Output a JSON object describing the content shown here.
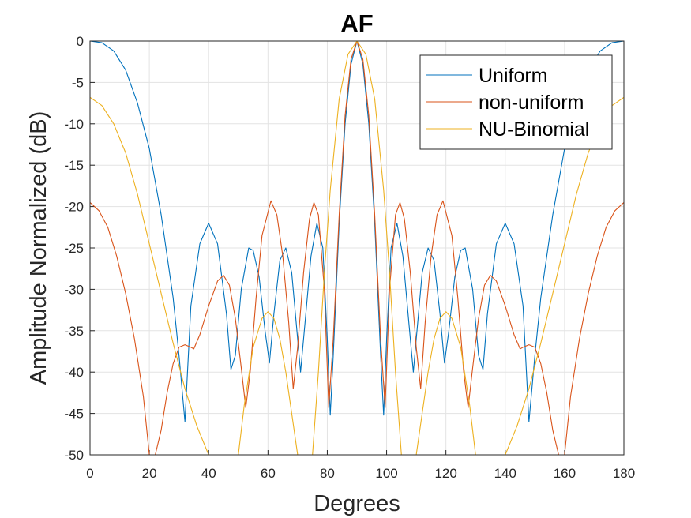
{
  "chart_data": {
    "type": "line",
    "title": "AF",
    "xlabel": "Degrees",
    "ylabel": "Amplitude Normalized (dB)",
    "xlim": [
      0,
      180
    ],
    "ylim": [
      -50,
      0
    ],
    "xticks": [
      "0",
      "20",
      "40",
      "60",
      "80",
      "100",
      "120",
      "140",
      "160",
      "180"
    ],
    "yticks": [
      "0",
      "-5",
      "-10",
      "-15",
      "-20",
      "-25",
      "-30",
      "-35",
      "-40",
      "-45",
      "-50"
    ],
    "grid": true,
    "legend_position": "top-right",
    "series": [
      {
        "name": "Uniform",
        "color": "#0072BD",
        "points": [
          [
            0,
            0
          ],
          [
            4,
            -0.2
          ],
          [
            8,
            -1.2
          ],
          [
            12,
            -3.5
          ],
          [
            16,
            -7.5
          ],
          [
            20,
            -13
          ],
          [
            24,
            -21
          ],
          [
            28,
            -31
          ],
          [
            30,
            -38
          ],
          [
            32,
            -46
          ],
          [
            34,
            -32
          ],
          [
            37,
            -24.5
          ],
          [
            40,
            -22
          ],
          [
            43,
            -24.5
          ],
          [
            46,
            -33
          ],
          [
            47.5,
            -39.7
          ],
          [
            49,
            -38
          ],
          [
            51,
            -30
          ],
          [
            53.5,
            -25
          ],
          [
            55,
            -25.3
          ],
          [
            57,
            -28.5
          ],
          [
            59,
            -35
          ],
          [
            60.5,
            -38.9
          ],
          [
            62,
            -33
          ],
          [
            64,
            -26.5
          ],
          [
            66,
            -25
          ],
          [
            68,
            -28
          ],
          [
            70,
            -36
          ],
          [
            71,
            -40
          ],
          [
            72.5,
            -34
          ],
          [
            74.5,
            -26
          ],
          [
            76.5,
            -22
          ],
          [
            78.5,
            -25
          ],
          [
            80,
            -36
          ],
          [
            81,
            -45.2
          ],
          [
            82,
            -38
          ],
          [
            84,
            -22
          ],
          [
            86,
            -10
          ],
          [
            88,
            -2.8
          ],
          [
            90,
            0
          ],
          [
            92,
            -2.8
          ],
          [
            94,
            -10
          ],
          [
            96,
            -22
          ],
          [
            98,
            -38
          ],
          [
            99,
            -45.2
          ],
          [
            100,
            -36
          ],
          [
            101.5,
            -25
          ],
          [
            103.5,
            -22
          ],
          [
            105.5,
            -26
          ],
          [
            107.5,
            -34
          ],
          [
            109,
            -40
          ],
          [
            110,
            -36
          ],
          [
            112,
            -28
          ],
          [
            114,
            -25
          ],
          [
            116,
            -26.5
          ],
          [
            118,
            -33
          ],
          [
            119.5,
            -38.9
          ],
          [
            121,
            -35
          ],
          [
            123,
            -28.5
          ],
          [
            125,
            -25.3
          ],
          [
            126.5,
            -25
          ],
          [
            129,
            -30
          ],
          [
            131,
            -38
          ],
          [
            132.5,
            -39.7
          ],
          [
            134,
            -33
          ],
          [
            137,
            -24.5
          ],
          [
            140,
            -22
          ],
          [
            143,
            -24.5
          ],
          [
            146,
            -32
          ],
          [
            148,
            -46
          ],
          [
            150,
            -38
          ],
          [
            152,
            -31
          ],
          [
            156,
            -21
          ],
          [
            160,
            -13
          ],
          [
            164,
            -7.5
          ],
          [
            168,
            -3.5
          ],
          [
            172,
            -1.2
          ],
          [
            176,
            -0.2
          ],
          [
            180,
            0
          ]
        ]
      },
      {
        "name": "non-uniform",
        "color": "#D95319",
        "points": [
          [
            0,
            -19.5
          ],
          [
            3,
            -20.5
          ],
          [
            6,
            -22.5
          ],
          [
            9,
            -26
          ],
          [
            12,
            -30.5
          ],
          [
            15,
            -36
          ],
          [
            18,
            -43
          ],
          [
            20,
            -50
          ],
          [
            22,
            -50
          ],
          [
            24,
            -47
          ],
          [
            26,
            -42.5
          ],
          [
            28,
            -39
          ],
          [
            30,
            -37
          ],
          [
            32,
            -36.7
          ],
          [
            34,
            -37
          ],
          [
            35,
            -37.2
          ],
          [
            37,
            -35.5
          ],
          [
            40,
            -32
          ],
          [
            43,
            -29
          ],
          [
            45,
            -28.3
          ],
          [
            47,
            -29.5
          ],
          [
            49,
            -33.5
          ],
          [
            51,
            -39.5
          ],
          [
            52.5,
            -44.3
          ],
          [
            54,
            -40
          ],
          [
            56,
            -31
          ],
          [
            58,
            -23.5
          ],
          [
            61,
            -19.3
          ],
          [
            63,
            -21
          ],
          [
            65,
            -26
          ],
          [
            67,
            -34
          ],
          [
            68.5,
            -42
          ],
          [
            70,
            -37
          ],
          [
            72,
            -28
          ],
          [
            74,
            -21.5
          ],
          [
            75.5,
            -19.5
          ],
          [
            77,
            -21
          ],
          [
            79,
            -30
          ],
          [
            80.5,
            -44.3
          ],
          [
            82,
            -36
          ],
          [
            84,
            -21
          ],
          [
            86,
            -9
          ],
          [
            88,
            -2.2
          ],
          [
            90,
            0
          ],
          [
            92,
            -2.2
          ],
          [
            94,
            -9
          ],
          [
            96,
            -21
          ],
          [
            98,
            -36
          ],
          [
            99.5,
            -44.3
          ],
          [
            101,
            -30
          ],
          [
            103,
            -21
          ],
          [
            104.5,
            -19.5
          ],
          [
            106,
            -21.5
          ],
          [
            108,
            -28
          ],
          [
            110,
            -37
          ],
          [
            111.5,
            -42
          ],
          [
            113,
            -34
          ],
          [
            115,
            -26
          ],
          [
            117,
            -21
          ],
          [
            119,
            -19.3
          ],
          [
            122,
            -23.5
          ],
          [
            124,
            -31
          ],
          [
            126,
            -40
          ],
          [
            127.5,
            -44.3
          ],
          [
            129,
            -39.5
          ],
          [
            131,
            -33.5
          ],
          [
            133,
            -29.5
          ],
          [
            135,
            -28.3
          ],
          [
            137,
            -29
          ],
          [
            140,
            -32
          ],
          [
            143,
            -35.5
          ],
          [
            145,
            -37.2
          ],
          [
            146,
            -37
          ],
          [
            148,
            -36.7
          ],
          [
            150,
            -37
          ],
          [
            152,
            -39
          ],
          [
            154,
            -42.5
          ],
          [
            156,
            -47
          ],
          [
            158,
            -50
          ],
          [
            160,
            -50
          ],
          [
            162,
            -43
          ],
          [
            165,
            -36
          ],
          [
            168,
            -30.5
          ],
          [
            171,
            -26
          ],
          [
            174,
            -22.5
          ],
          [
            177,
            -20.5
          ],
          [
            180,
            -19.5
          ]
        ]
      },
      {
        "name": "NU-Binomial",
        "color": "#EDB120",
        "points": [
          [
            0,
            -6.8
          ],
          [
            4,
            -7.8
          ],
          [
            8,
            -10
          ],
          [
            12,
            -13.5
          ],
          [
            16,
            -18.5
          ],
          [
            20,
            -24.5
          ],
          [
            24,
            -30.5
          ],
          [
            28,
            -36.5
          ],
          [
            32,
            -42
          ],
          [
            36,
            -46.5
          ],
          [
            40,
            -50
          ],
          [
            50,
            -50
          ],
          [
            52,
            -44
          ],
          [
            55,
            -37
          ],
          [
            58,
            -33.5
          ],
          [
            60,
            -32.7
          ],
          [
            62,
            -33.5
          ],
          [
            64,
            -36
          ],
          [
            66,
            -40
          ],
          [
            68,
            -45
          ],
          [
            70,
            -50
          ],
          [
            75,
            -50
          ],
          [
            77,
            -40
          ],
          [
            79,
            -28
          ],
          [
            81,
            -18
          ],
          [
            84,
            -7
          ],
          [
            87,
            -1.6
          ],
          [
            90,
            0
          ],
          [
            93,
            -1.6
          ],
          [
            96,
            -7
          ],
          [
            99,
            -18
          ],
          [
            101,
            -28
          ],
          [
            103,
            -40
          ],
          [
            105,
            -50
          ],
          [
            110,
            -50
          ],
          [
            112,
            -45
          ],
          [
            114,
            -40
          ],
          [
            116,
            -36
          ],
          [
            118,
            -33.5
          ],
          [
            120,
            -32.7
          ],
          [
            122,
            -33.5
          ],
          [
            125,
            -37
          ],
          [
            128,
            -44
          ],
          [
            130,
            -50
          ],
          [
            140,
            -50
          ],
          [
            144,
            -46.5
          ],
          [
            148,
            -42
          ],
          [
            152,
            -36.5
          ],
          [
            156,
            -30.5
          ],
          [
            160,
            -24.5
          ],
          [
            164,
            -18.5
          ],
          [
            168,
            -13.5
          ],
          [
            172,
            -10
          ],
          [
            176,
            -7.8
          ],
          [
            180,
            -6.8
          ]
        ]
      }
    ]
  }
}
